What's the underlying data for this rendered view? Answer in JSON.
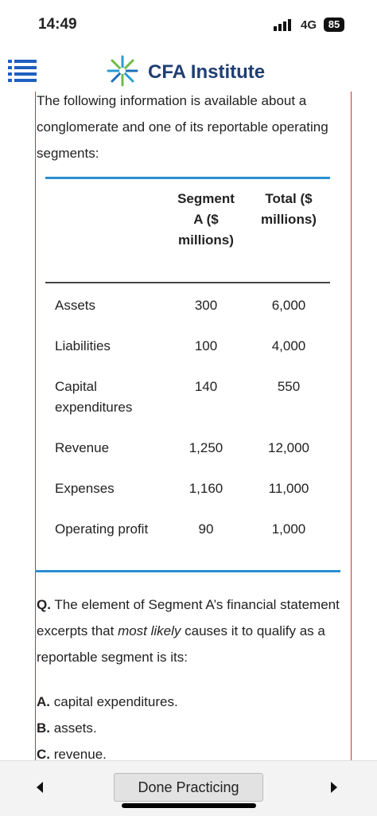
{
  "status_bar": {
    "time": "14:49",
    "network": "4G",
    "battery": "85"
  },
  "header": {
    "title": "CFA Institute"
  },
  "intro": "The following information is available about a conglomerate and one of its reportable operating segments:",
  "table": {
    "columns": [
      "Segment A ($ millions)",
      "Total ($ millions)"
    ],
    "rows": [
      [
        "Assets",
        "300",
        "6,000"
      ],
      [
        "Liabilities",
        "100",
        "4,000"
      ],
      [
        "Capital expenditures",
        "140",
        "550"
      ],
      [
        "Revenue",
        "1,250",
        "12,000"
      ],
      [
        "Expenses",
        "1,160",
        "11,000"
      ],
      [
        "Operating profit",
        "90",
        "1,000"
      ]
    ]
  },
  "question": {
    "label": "Q.",
    "text_before": "The element of Segment A’s financial statement excerpts that ",
    "emphasis": "most likely",
    "text_after": " causes it to qualify as a reportable segment is its:"
  },
  "options": [
    {
      "letter": "A.",
      "text": "capital expenditures."
    },
    {
      "letter": "B.",
      "text": "assets."
    },
    {
      "letter": "C.",
      "text": "revenue."
    }
  ],
  "footer": {
    "button": "Done Practicing"
  }
}
